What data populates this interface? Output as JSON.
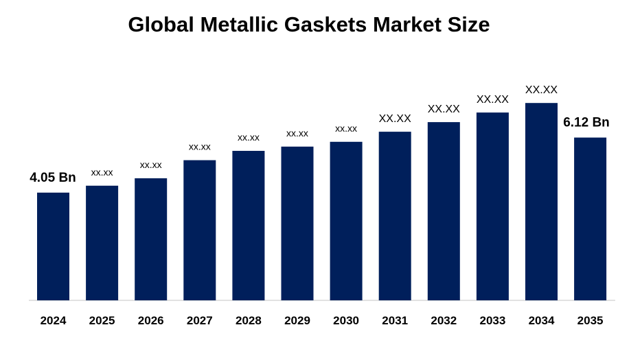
{
  "chart_data": {
    "type": "bar",
    "title": "Global Metallic Gaskets Market Size",
    "xlabel": "",
    "ylabel": "",
    "categories": [
      "2024",
      "2025",
      "2026",
      "2027",
      "2028",
      "2029",
      "2030",
      "2031",
      "2032",
      "2033",
      "2034",
      "2035"
    ],
    "values": [
      4.05,
      4.31,
      4.59,
      5.27,
      5.62,
      5.78,
      5.96,
      6.34,
      6.7,
      7.06,
      7.42,
      6.12
    ],
    "value_labels": [
      "4.05 Bn",
      "xx.xx",
      "xx.xx",
      "xx.xx",
      "xx.xx",
      "xx.xx",
      "xx.xx",
      "XX.XX",
      "XX.XX",
      "XX.XX",
      "XX.XX",
      "6.12 Bn"
    ],
    "ylim": [
      0,
      8.92
    ],
    "grid": false,
    "legend": "none",
    "colors": {
      "bar": "#001f5b",
      "axis": "#d9d9d9",
      "text": "#000000"
    }
  }
}
